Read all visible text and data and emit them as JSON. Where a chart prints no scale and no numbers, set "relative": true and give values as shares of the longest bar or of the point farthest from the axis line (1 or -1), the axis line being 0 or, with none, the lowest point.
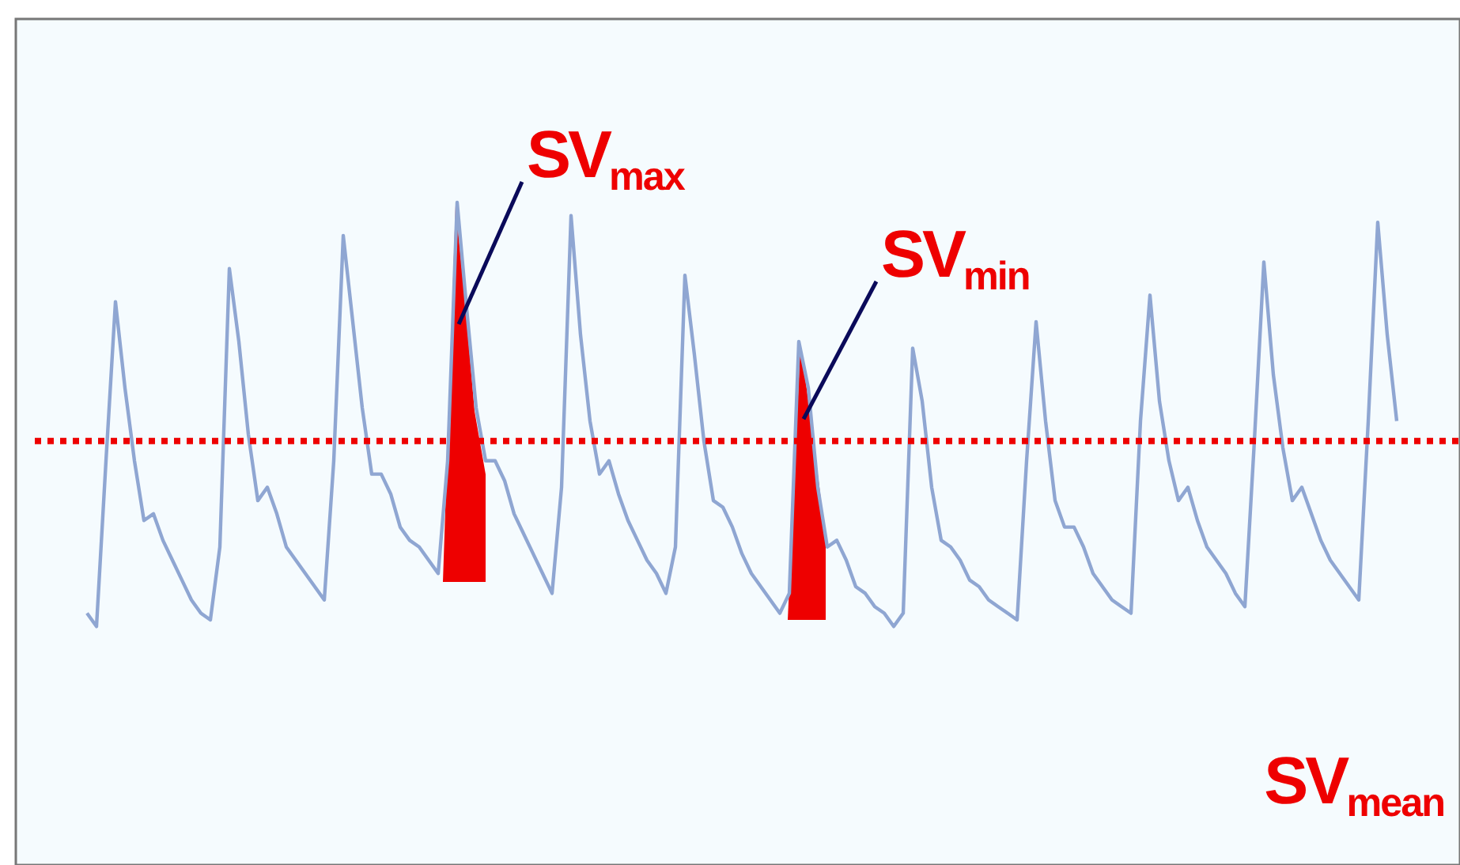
{
  "chart_data": {
    "type": "line",
    "relative": true,
    "categories": [
      null,
      null,
      null,
      null,
      null,
      null,
      null,
      null,
      null,
      null,
      null,
      null,
      null,
      null,
      null,
      null,
      null,
      null,
      null,
      null,
      null,
      null,
      null,
      null,
      null,
      null,
      null,
      null,
      null,
      null,
      null,
      null,
      null,
      null,
      null,
      null,
      null,
      null,
      null,
      null,
      null,
      null,
      null,
      null,
      null,
      null,
      null,
      null,
      null,
      null,
      null,
      null,
      null,
      null,
      null,
      null,
      null,
      null,
      null,
      null,
      null,
      null,
      null,
      null,
      null,
      null,
      null,
      null,
      null,
      null,
      null,
      null,
      null,
      null,
      null,
      null,
      null,
      null,
      null,
      null,
      null,
      null,
      null,
      null,
      null,
      null,
      null,
      null,
      null,
      null,
      null,
      null,
      null,
      null,
      null,
      null,
      null,
      null,
      null,
      null,
      null,
      null,
      null,
      null,
      null,
      null,
      null,
      null,
      null,
      null,
      null,
      null,
      null,
      null,
      null,
      null,
      null,
      null,
      null,
      null,
      null,
      null,
      null,
      null,
      null,
      null,
      null,
      null,
      null,
      null,
      null,
      null,
      null,
      null,
      null,
      null,
      null,
      null,
      null
    ],
    "series": [
      {
        "color": "#8fa6d2",
        "values": [
          0.38,
          0.36,
          0.61,
          0.85,
          0.72,
          0.61,
          0.52,
          0.53,
          0.49,
          0.46,
          0.43,
          0.4,
          0.38,
          0.37,
          0.48,
          0.9,
          0.79,
          0.65,
          0.55,
          0.57,
          0.53,
          0.48,
          0.46,
          0.44,
          0.42,
          0.4,
          0.61,
          0.95,
          0.82,
          0.69,
          0.59,
          0.59,
          0.56,
          0.51,
          0.49,
          0.48,
          0.46,
          0.44,
          0.61,
          1.0,
          0.84,
          0.69,
          0.61,
          0.61,
          0.58,
          0.53,
          0.5,
          0.47,
          0.44,
          0.41,
          0.57,
          0.98,
          0.8,
          0.67,
          0.59,
          0.61,
          0.56,
          0.52,
          0.49,
          0.46,
          0.44,
          0.41,
          0.48,
          0.89,
          0.77,
          0.64,
          0.55,
          0.54,
          0.51,
          0.47,
          0.44,
          0.42,
          0.4,
          0.38,
          0.41,
          0.79,
          0.72,
          0.57,
          0.48,
          0.49,
          0.46,
          0.42,
          0.41,
          0.39,
          0.38,
          0.36,
          0.38,
          0.78,
          0.7,
          0.57,
          0.49,
          0.48,
          0.46,
          0.43,
          0.42,
          0.4,
          0.39,
          0.38,
          0.37,
          0.61,
          0.82,
          0.67,
          0.55,
          0.51,
          0.51,
          0.48,
          0.44,
          0.42,
          0.4,
          0.39,
          0.38,
          0.67,
          0.86,
          0.7,
          0.61,
          0.55,
          0.57,
          0.52,
          0.48,
          0.46,
          0.44,
          0.41,
          0.39,
          0.64,
          0.91,
          0.74,
          0.63,
          0.55,
          0.57,
          0.53,
          0.49,
          0.46,
          0.44,
          0.42,
          0.4,
          0.67,
          0.97,
          0.8,
          0.67
        ]
      }
    ],
    "ref_lines": [
      {
        "axis": "y",
        "value": 0.64,
        "label": "SV$_{mean}$",
        "color": "#ee0000",
        "line_style": "dotted"
      }
    ],
    "annotations": [
      "SV$_{max}$",
      "SV$_{min}$"
    ]
  }
}
